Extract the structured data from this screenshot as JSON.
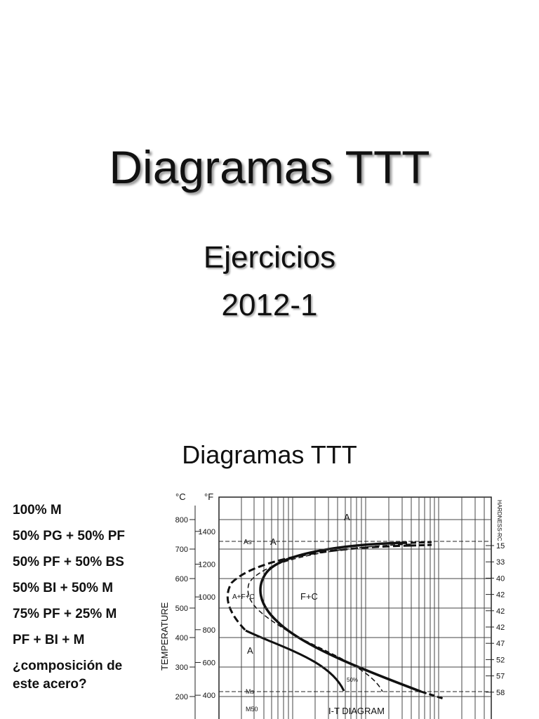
{
  "slide1": {
    "title": "Diagramas TTT",
    "subtitle": [
      "Ejercicios",
      "2012-1"
    ]
  },
  "slide2": {
    "title": "Diagramas TTT",
    "items": [
      "100% M",
      "50% PG + 50% PF",
      "50% PF + 50% BS",
      "50% BI + 50% M",
      "75% PF + 25% M",
      "PF + BI + M",
      "¿composición de",
      "este acero?"
    ],
    "diagram": {
      "celsius_unit": "°C",
      "fahrenheit_unit": "°F",
      "celsius_ticks": [
        800,
        700,
        600,
        500,
        400,
        300,
        200
      ],
      "fahrenheit_ticks": [
        1400,
        1200,
        1000,
        800,
        600,
        400
      ],
      "y_label": "TEMPERATURE",
      "hardness_label": "HARDNESS-RC",
      "hardness_values": [
        15,
        33,
        40,
        42,
        42,
        42,
        47,
        52,
        57,
        58
      ],
      "labels": [
        "A",
        "As",
        "A",
        "A+F+C",
        "F+C",
        "A",
        "50%",
        "Ms",
        "M50",
        "I-T DIAGRAM"
      ]
    }
  }
}
